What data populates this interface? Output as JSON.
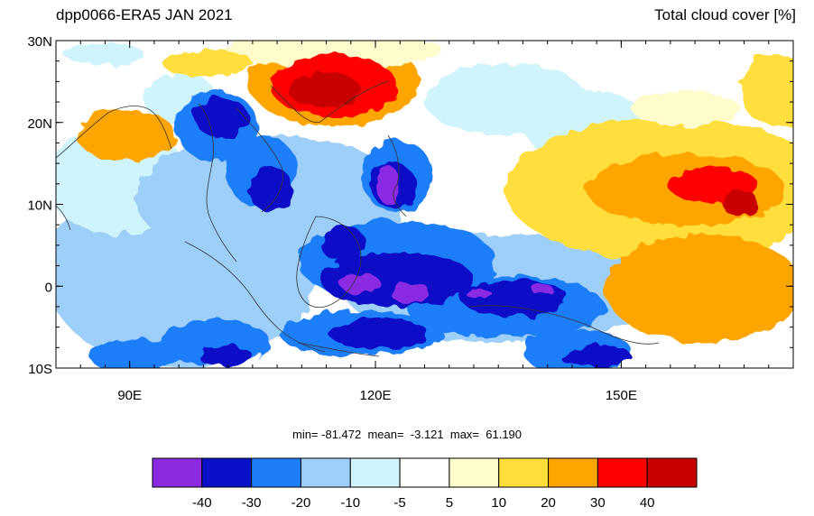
{
  "header": {
    "title_left": "dpp0066-ERA5 JAN 2021",
    "title_right": "Total cloud cover [%]"
  },
  "map": {
    "lat_range": [
      -10,
      30
    ],
    "lon_range": [
      81,
      171
    ],
    "lat_ticks": [
      {
        "value": 30,
        "label": "30N"
      },
      {
        "value": 20,
        "label": "20N"
      },
      {
        "value": 10,
        "label": "10N"
      },
      {
        "value": 0,
        "label": "0"
      },
      {
        "value": -10,
        "label": "10S"
      }
    ],
    "lon_ticks": [
      {
        "value": 90,
        "label": "90E"
      },
      {
        "value": 120,
        "label": "120E"
      },
      {
        "value": 150,
        "label": "150E"
      }
    ]
  },
  "stats": {
    "text": "min= -81.472  mean=  -3.121  max=  61.190"
  },
  "colorbar": {
    "colors": [
      "#8a2be2",
      "#0a10c8",
      "#1e7ef8",
      "#9ecff8",
      "#cff4fc",
      "#ffffff",
      "#fffccc",
      "#ffde3c",
      "#ffa500",
      "#ff0000",
      "#c80000"
    ],
    "labels": [
      "-40",
      "-30",
      "-20",
      "-10",
      "-5",
      "5",
      "10",
      "20",
      "30",
      "40"
    ]
  }
}
